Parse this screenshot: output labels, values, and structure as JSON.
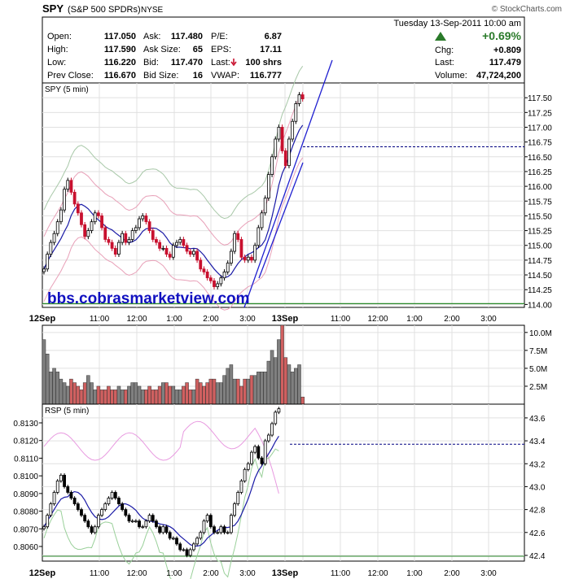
{
  "header": {
    "symbol": "SPY",
    "name": "(S&P 500 SPDRs)",
    "exchange": "NYSE",
    "watermark": "© StockCharts.com",
    "datetime": "Tuesday  13-Sep-2011  10:00 am",
    "change_pct": "+0.69%",
    "quote": {
      "open_label": "Open:",
      "open": "117.050",
      "high_label": "High:",
      "high": "117.590",
      "low_label": "Low:",
      "low": "116.220",
      "prevclose_label": "Prev Close:",
      "prevclose": "116.670",
      "ask_label": "Ask:",
      "ask": "117.480",
      "asksize_label": "Ask Size:",
      "asksize": "65",
      "bid_label": "Bid:",
      "bid": "117.470",
      "bidsize_label": "Bid Size:",
      "bidsize": "16",
      "pe_label": "P/E:",
      "pe": "6.87",
      "eps_label": "EPS:",
      "eps": "17.11",
      "last_shrs_label": "Last:",
      "last_shrs": "100 shrs",
      "vwap_label": "VWAP:",
      "vwap": "116.777",
      "chg_label": "Chg:",
      "chg": "+0.809",
      "last_label": "Last:",
      "last": "117.479",
      "volume_label": "Volume:",
      "volume": "47,724,200"
    }
  },
  "colors": {
    "up": "#000000",
    "down": "#c8102e",
    "ma": "#1a1aa6",
    "band_pink": "#e8a0b8",
    "band_green": "#a8c8a8",
    "rsp_pink": "#e89ae0",
    "rsp_green": "#9ad09a",
    "vol_up": "#808080",
    "vol_down": "#d06060",
    "trend": "#2020d0",
    "dash": "#000080",
    "watermark_link": "#1010c0"
  },
  "watermark_url": "bbs.cobrasmarketview.com",
  "chart_data": [
    {
      "type": "candlestick",
      "panel_label": "SPY (5 min)",
      "y_ticks": [
        114.0,
        114.25,
        114.5,
        114.75,
        115.0,
        115.25,
        115.5,
        115.75,
        116.0,
        116.25,
        116.5,
        116.75,
        117.0,
        117.25,
        117.5
      ],
      "ylim": [
        113.95,
        117.75
      ],
      "reference_line": 116.67,
      "x_ticks": [
        "12Sep",
        "11:00",
        "12:00",
        "1:00",
        "2:00",
        "3:00",
        "13Sep",
        "11:00",
        "12:00",
        "1:00",
        "2:00",
        "3:00"
      ],
      "closes": [
        114.6,
        114.85,
        115.05,
        115.2,
        115.4,
        115.6,
        115.95,
        116.1,
        115.9,
        115.7,
        115.55,
        115.35,
        115.15,
        115.25,
        115.4,
        115.55,
        115.5,
        115.3,
        115.1,
        115.05,
        114.95,
        114.85,
        115.05,
        115.2,
        115.05,
        115.1,
        115.25,
        115.3,
        115.45,
        115.5,
        115.4,
        115.25,
        115.1,
        115.05,
        114.95,
        114.95,
        114.85,
        114.8,
        115.0,
        115.05,
        115.1,
        115.0,
        114.9,
        114.85,
        114.9,
        114.75,
        114.6,
        114.55,
        114.45,
        114.4,
        114.3,
        114.35,
        114.45,
        114.55,
        114.7,
        114.9,
        115.2,
        115.1,
        114.8,
        114.75,
        114.8,
        114.75,
        115.0,
        115.3,
        115.55,
        115.8,
        116.2,
        116.5,
        116.8,
        117.0,
        116.6,
        116.35,
        116.8,
        117.1,
        117.4,
        117.55,
        117.48
      ]
    },
    {
      "type": "bar",
      "panel_label": "Volume",
      "y_ticks": [
        "2.5M",
        "5.0M",
        "7.5M",
        "10.0M"
      ],
      "ylim": [
        0,
        11.0
      ],
      "values": [
        9.0,
        7.0,
        4.5,
        5.0,
        4.5,
        3.5,
        3.0,
        2.5,
        3.5,
        3.0,
        2.5,
        2.0,
        3.0,
        4.0,
        3.0,
        2.0,
        2.5,
        2.0,
        2.0,
        2.5,
        2.0,
        2.0,
        2.5,
        2.0,
        2.0,
        2.5,
        3.0,
        3.0,
        2.5,
        2.0,
        2.0,
        2.5,
        2.0,
        2.0,
        2.5,
        3.0,
        3.0,
        2.5,
        2.5,
        2.0,
        2.0,
        2.5,
        3.0,
        2.0,
        2.0,
        3.5,
        3.0,
        2.5,
        3.0,
        3.5,
        3.5,
        3.0,
        3.0,
        4.0,
        5.0,
        5.5,
        3.5,
        3.5,
        2.5,
        3.5,
        3.5,
        4.0,
        4.0,
        4.5,
        4.5,
        4.5,
        6.0,
        7.5,
        6.5,
        9.0,
        11.0,
        6.5,
        5.5,
        4.5,
        5.0,
        5.5,
        1.0
      ]
    },
    {
      "type": "candlestick",
      "panel_label": "RSP (5 min)",
      "y_ticks_left": [
        0.806,
        0.807,
        0.808,
        0.809,
        0.81,
        0.811,
        0.812,
        0.813
      ],
      "y_ticks_right": [
        42.4,
        42.6,
        42.8,
        43.0,
        43.2,
        43.4,
        43.6
      ],
      "ylim": [
        42.35,
        43.72
      ],
      "reference_line": 43.37,
      "closes": [
        42.65,
        42.75,
        42.85,
        42.95,
        43.05,
        43.1,
        43.0,
        42.95,
        42.9,
        42.85,
        42.8,
        42.75,
        42.7,
        42.65,
        42.6,
        42.65,
        42.75,
        42.8,
        42.85,
        42.9,
        42.95,
        42.9,
        42.85,
        42.8,
        42.75,
        42.7,
        42.7,
        42.7,
        42.65,
        42.65,
        42.7,
        42.75,
        42.7,
        42.65,
        42.6,
        42.65,
        42.6,
        42.55,
        42.55,
        42.5,
        42.45,
        42.45,
        42.4,
        42.45,
        42.5,
        42.55,
        42.6,
        42.7,
        42.75,
        42.65,
        42.6,
        42.6,
        42.65,
        42.6,
        42.6,
        42.75,
        42.85,
        42.95,
        43.05,
        43.15,
        43.2,
        43.3,
        43.35,
        43.25,
        43.2,
        43.4,
        43.45,
        43.55,
        43.65,
        43.68
      ]
    }
  ]
}
